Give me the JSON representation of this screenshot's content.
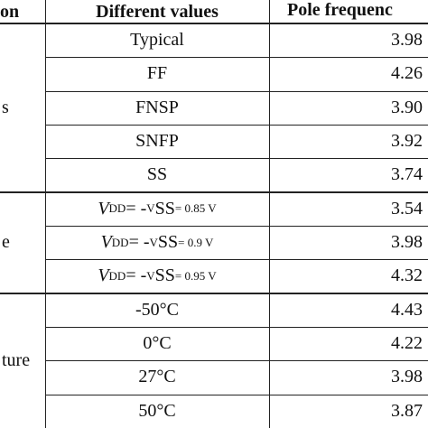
{
  "header": [
    "on",
    "Different values",
    "Pole frequenc"
  ],
  "groups": [
    {
      "label": "s",
      "rows": [
        {
          "value": "Typical",
          "pole": "3.98"
        },
        {
          "value": "FF",
          "pole": "4.26"
        },
        {
          "value": "FNSP",
          "pole": "3.90"
        },
        {
          "value": "SNFP",
          "pole": "3.92"
        },
        {
          "value": "SS",
          "pole": "3.74"
        }
      ]
    },
    {
      "label": "e",
      "rows": [
        {
          "value": {
            "parts": [
              "V",
              "DD",
              " = -",
              "V",
              "SS",
              " = 0.85 V"
            ]
          },
          "pole": "3.54"
        },
        {
          "value": {
            "parts": [
              "V",
              "DD",
              " = -",
              "V",
              "SS",
              " = 0.9 V"
            ]
          },
          "pole": "3.98"
        },
        {
          "value": {
            "parts": [
              "V",
              "DD",
              " = -",
              "V",
              "SS",
              " = 0.95 V"
            ]
          },
          "pole": "4.32"
        }
      ]
    },
    {
      "label": "ture",
      "rows": [
        {
          "value": "-50°C",
          "pole": "4.43"
        },
        {
          "value": "0°C",
          "pole": "4.22"
        },
        {
          "value": "27°C",
          "pole": "3.98"
        },
        {
          "value": "50°C",
          "pole": "3.87"
        }
      ]
    }
  ]
}
